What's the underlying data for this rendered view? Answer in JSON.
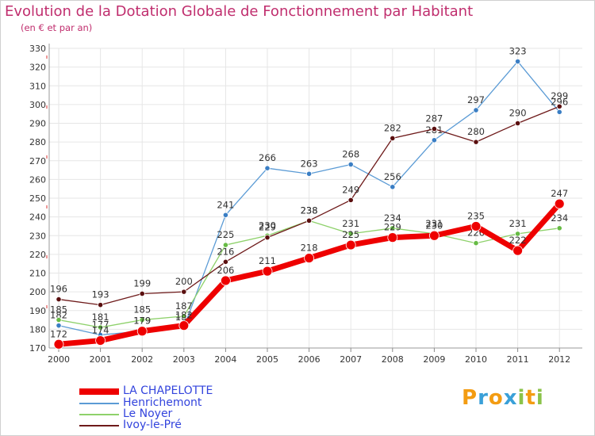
{
  "chart_data": {
    "type": "line",
    "title": "Evolution de la Dotation Globale de Fonctionnement par Habitant",
    "subtitle": "(en € et par an)",
    "categories": [
      "2000",
      "2001",
      "2002",
      "2003",
      "2004",
      "2005",
      "2006",
      "2007",
      "2008",
      "2009",
      "2010",
      "2011",
      "2012"
    ],
    "ylim": [
      170,
      330
    ],
    "yticks": [
      170,
      180,
      190,
      200,
      210,
      220,
      230,
      240,
      250,
      260,
      270,
      280,
      290,
      300,
      310,
      320,
      330
    ],
    "grid": true,
    "legend_position": "bottom-left",
    "series": [
      {
        "name": "Henrichemont",
        "color": "#5b9bd5",
        "values": [
          182,
          177,
          179,
          181,
          241,
          266,
          263,
          268,
          256,
          281,
          297,
          323,
          296
        ]
      },
      {
        "name": "Le Noyer",
        "color": "#8ed16b",
        "values": [
          185,
          181,
          185,
          187,
          225,
          230,
          238,
          231,
          234,
          231,
          226,
          231,
          234
        ]
      },
      {
        "name": "Ivoy-le-Pré",
        "color": "#6e1a1a",
        "values": [
          196,
          193,
          199,
          200,
          216,
          229,
          238,
          249,
          282,
          287,
          280,
          290,
          299
        ]
      },
      {
        "name": "LA CHAPELOTTE",
        "color": "#ee0000",
        "values": [
          172,
          174,
          179,
          182,
          206,
          211,
          218,
          225,
          229,
          230,
          235,
          222,
          247
        ]
      }
    ],
    "legend_order": [
      "LA CHAPELOTTE",
      "Henrichemont",
      "Le Noyer",
      "Ivoy-le-Pré"
    ]
  },
  "brand": {
    "letters": [
      "P",
      "r",
      "o",
      "x",
      "i",
      "t",
      "i"
    ],
    "colors": [
      "#f39c12",
      "#3aa0d8",
      "#f39c12",
      "#3aa0d8",
      "#8bc34a",
      "#f39c12",
      "#8bc34a"
    ]
  }
}
